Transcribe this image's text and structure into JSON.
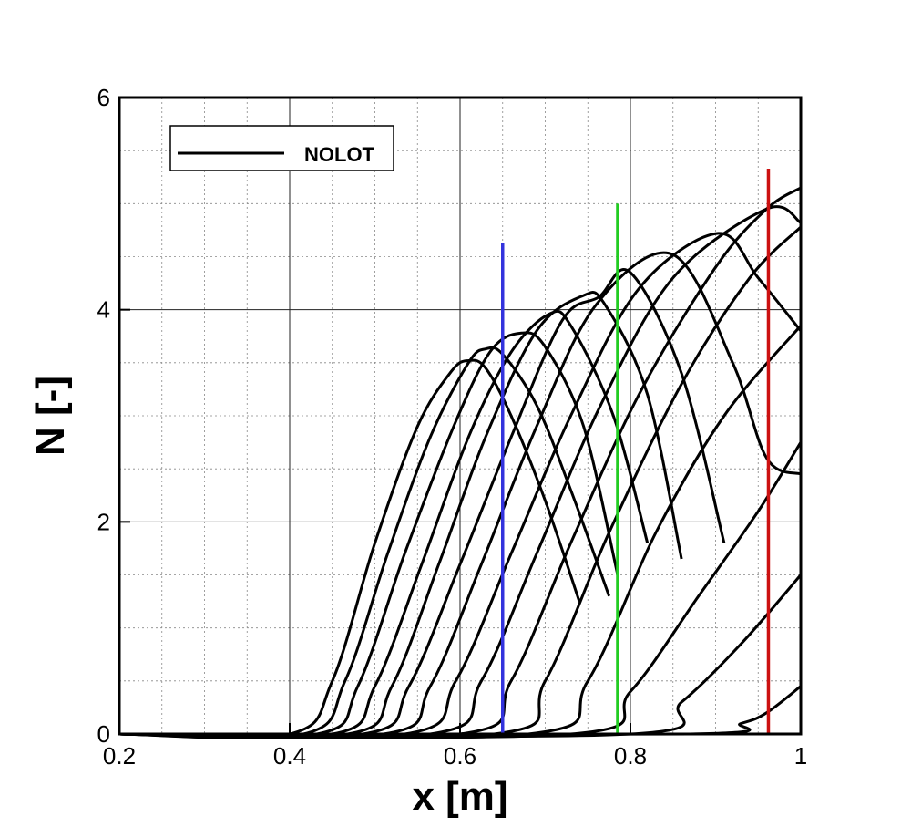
{
  "chart_data": {
    "type": "line",
    "title": "",
    "xlabel": "x [m]",
    "ylabel": "N [-]",
    "xlim": [
      0.2,
      1.0
    ],
    "ylim": [
      0,
      6
    ],
    "x_ticks": [
      0.2,
      0.4,
      0.6,
      0.8,
      1.0
    ],
    "x_tick_labels": [
      "0.2",
      "0.4",
      "0.6",
      "0.8",
      "1"
    ],
    "y_ticks": [
      0,
      2,
      4,
      6
    ],
    "y_tick_labels": [
      "0",
      "2",
      "4",
      "6"
    ],
    "grid": true,
    "legend": {
      "placement": "top-left",
      "entries": [
        {
          "label": "NOLOT",
          "color": "#000000"
        }
      ]
    },
    "series": [
      {
        "name": "NOLOT",
        "points": [
          [
            0.2,
            0
          ],
          [
            0.4,
            0
          ],
          [
            0.45,
            0.5
          ],
          [
            0.5,
            1.8
          ],
          [
            0.55,
            2.9
          ],
          [
            0.59,
            3.42
          ],
          [
            0.61,
            3.52
          ],
          [
            0.63,
            3.45
          ],
          [
            0.66,
            3.0
          ],
          [
            0.7,
            2.2
          ],
          [
            0.74,
            1.25
          ]
        ]
      },
      {
        "points": [
          [
            0.2,
            0
          ],
          [
            0.416,
            0
          ],
          [
            0.465,
            0.5
          ],
          [
            0.515,
            1.7
          ],
          [
            0.565,
            2.8
          ],
          [
            0.61,
            3.5
          ],
          [
            0.63,
            3.63
          ],
          [
            0.65,
            3.58
          ],
          [
            0.69,
            3.1
          ],
          [
            0.73,
            2.3
          ],
          [
            0.775,
            1.3
          ]
        ]
      },
      {
        "points": [
          [
            0.2,
            0
          ],
          [
            0.432,
            0
          ],
          [
            0.48,
            0.45
          ],
          [
            0.535,
            1.7
          ],
          [
            0.59,
            2.85
          ],
          [
            0.635,
            3.6
          ],
          [
            0.672,
            3.78
          ],
          [
            0.7,
            3.65
          ],
          [
            0.745,
            2.9
          ],
          [
            0.785,
            1.5
          ]
        ]
      },
      {
        "points": [
          [
            0.2,
            0
          ],
          [
            0.45,
            0
          ],
          [
            0.5,
            0.45
          ],
          [
            0.555,
            1.6
          ],
          [
            0.61,
            2.8
          ],
          [
            0.66,
            3.6
          ],
          [
            0.705,
            3.96
          ],
          [
            0.73,
            3.85
          ],
          [
            0.78,
            3.0
          ],
          [
            0.82,
            1.8
          ]
        ]
      },
      {
        "points": [
          [
            0.2,
            0
          ],
          [
            0.468,
            0
          ],
          [
            0.52,
            0.45
          ],
          [
            0.575,
            1.6
          ],
          [
            0.63,
            2.8
          ],
          [
            0.69,
            3.8
          ],
          [
            0.744,
            4.13
          ],
          [
            0.77,
            4.05
          ],
          [
            0.82,
            3.2
          ],
          [
            0.86,
            1.65
          ]
        ]
      },
      {
        "points": [
          [
            0.2,
            0
          ],
          [
            0.486,
            0
          ],
          [
            0.54,
            0.45
          ],
          [
            0.6,
            1.6
          ],
          [
            0.66,
            2.8
          ],
          [
            0.72,
            3.9
          ],
          [
            0.763,
            4.12
          ],
          [
            0.8,
            4.35
          ],
          [
            0.86,
            3.4
          ],
          [
            0.91,
            1.8
          ]
        ]
      },
      {
        "points": [
          [
            0.2,
            0
          ],
          [
            0.51,
            0
          ],
          [
            0.565,
            0.45
          ],
          [
            0.625,
            1.6
          ],
          [
            0.69,
            2.9
          ],
          [
            0.76,
            4.05
          ],
          [
            0.85,
            4.52
          ],
          [
            0.92,
            3.5
          ],
          [
            0.96,
            2.6
          ],
          [
            1.0,
            2.45
          ]
        ]
      },
      {
        "points": [
          [
            0.2,
            0
          ],
          [
            0.535,
            0
          ],
          [
            0.595,
            0.5
          ],
          [
            0.66,
            1.7
          ],
          [
            0.73,
            3.0
          ],
          [
            0.81,
            4.2
          ],
          [
            0.903,
            4.72
          ],
          [
            0.95,
            4.3
          ],
          [
            1.0,
            3.8
          ]
        ]
      },
      {
        "points": [
          [
            0.2,
            0
          ],
          [
            0.565,
            0
          ],
          [
            0.625,
            0.5
          ],
          [
            0.69,
            1.7
          ],
          [
            0.765,
            3.1
          ],
          [
            0.85,
            4.3
          ],
          [
            0.96,
            4.95
          ],
          [
            1.0,
            4.82
          ]
        ]
      },
      {
        "points": [
          [
            0.2,
            0
          ],
          [
            0.6,
            0
          ],
          [
            0.66,
            0.5
          ],
          [
            0.73,
            1.8
          ],
          [
            0.81,
            3.2
          ],
          [
            0.9,
            4.4
          ],
          [
            0.96,
            4.95
          ],
          [
            1.0,
            5.15
          ]
        ]
      },
      {
        "points": [
          [
            0.2,
            0
          ],
          [
            0.64,
            0
          ],
          [
            0.7,
            0.5
          ],
          [
            0.775,
            1.9
          ],
          [
            0.86,
            3.3
          ],
          [
            0.94,
            4.3
          ],
          [
            1.0,
            4.78
          ]
        ]
      },
      {
        "points": [
          [
            0.2,
            0
          ],
          [
            0.68,
            0
          ],
          [
            0.75,
            0.5
          ],
          [
            0.83,
            1.9
          ],
          [
            0.91,
            3.0
          ],
          [
            1.0,
            3.85
          ]
        ]
      },
      {
        "points": [
          [
            0.2,
            0
          ],
          [
            0.73,
            0
          ],
          [
            0.8,
            0.4
          ],
          [
            0.88,
            1.3
          ],
          [
            0.95,
            2.1
          ],
          [
            1.0,
            2.75
          ]
        ]
      },
      {
        "points": [
          [
            0.2,
            0
          ],
          [
            0.8,
            0
          ],
          [
            0.86,
            0.3
          ],
          [
            0.93,
            0.85
          ],
          [
            1.0,
            1.5
          ]
        ]
      },
      {
        "points": [
          [
            0.2,
            0
          ],
          [
            0.87,
            0
          ],
          [
            0.93,
            0.1
          ],
          [
            0.96,
            0.2
          ],
          [
            1.0,
            0.45
          ]
        ]
      }
    ],
    "vertical_lines": [
      {
        "x": 0.65,
        "y_top": 4.63,
        "color": "#3333dd"
      },
      {
        "x": 0.785,
        "y_top": 5.0,
        "color": "#22cc22"
      },
      {
        "x": 0.962,
        "y_top": 5.33,
        "color": "#cc1111"
      }
    ]
  }
}
